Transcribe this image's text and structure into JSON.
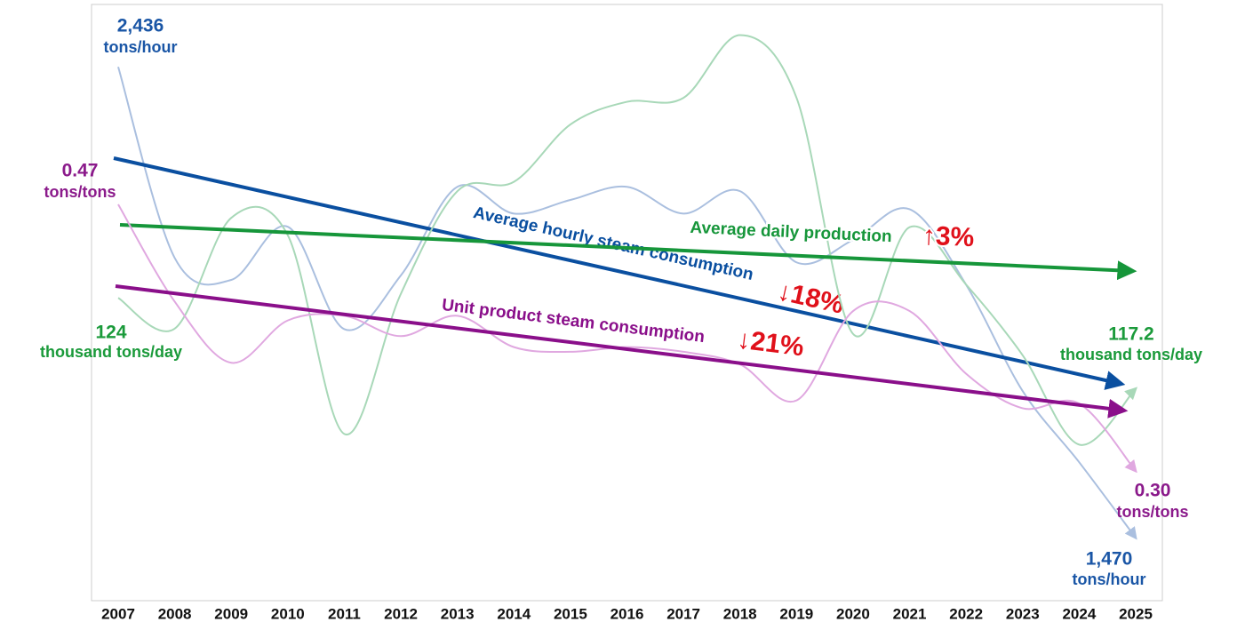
{
  "chart_data": {
    "type": "line",
    "categories": [
      "2007",
      "2008",
      "2009",
      "2010",
      "2011",
      "2012",
      "2013",
      "2014",
      "2015",
      "2016",
      "2017",
      "2018",
      "2019",
      "2020",
      "2021",
      "2022",
      "2023",
      "2024",
      "2025"
    ],
    "series": [
      {
        "name": "Average hourly steam consumption",
        "change": "↓18%",
        "unit": "tons/hour",
        "color": "#aabfdf",
        "trend_color": "#0a4fa0",
        "label_color": "#1a56a6",
        "ylim": [
          1341,
          2564
        ],
        "values": [
          2436,
          2044,
          1999,
          2108,
          1898,
          2008,
          2190,
          2135,
          2163,
          2190,
          2135,
          2181,
          2035,
          2081,
          2144,
          1989,
          1771,
          1625,
          1470
        ],
        "value_labels": [
          "2,436",
          null,
          null,
          null,
          null,
          null,
          null,
          null,
          null,
          null,
          null,
          null,
          null,
          null,
          null,
          null,
          null,
          null,
          "1,470"
        ]
      },
      {
        "name": "Average daily production",
        "change": "↑3%",
        "unit": "thousand tons/day",
        "color": "#a8d8b8",
        "trend_color": "#16963a",
        "label_color": "#1a9a3a",
        "ylim": [
          101.3,
          146.0
        ],
        "values": [
          124,
          121.7,
          130.0,
          128.7,
          113.8,
          124.3,
          132.0,
          132.7,
          137.0,
          138.7,
          139.0,
          143.7,
          139.0,
          121.3,
          129.3,
          125.0,
          119.7,
          113.0,
          117.2
        ],
        "value_labels": [
          "124",
          null,
          null,
          null,
          null,
          null,
          null,
          null,
          null,
          null,
          null,
          null,
          null,
          null,
          null,
          null,
          null,
          null,
          "117.2"
        ]
      },
      {
        "name": "Unit product steam consumption",
        "change": "↓21%",
        "unit": "tons/tons",
        "color": "#e0a8e0",
        "trend_color": "#8a0f8a",
        "label_color": "#8b1a8b",
        "ylim": [
          0.2173,
          0.5975
        ],
        "values": [
          0.47,
          0.408,
          0.369,
          0.396,
          0.399,
          0.386,
          0.399,
          0.379,
          0.376,
          0.379,
          0.376,
          0.368,
          0.345,
          0.402,
          0.402,
          0.362,
          0.34,
          0.343,
          0.3
        ],
        "value_labels": [
          "0.47",
          null,
          null,
          null,
          null,
          null,
          null,
          null,
          null,
          null,
          null,
          null,
          null,
          null,
          null,
          null,
          null,
          null,
          "0.30"
        ]
      }
    ]
  }
}
